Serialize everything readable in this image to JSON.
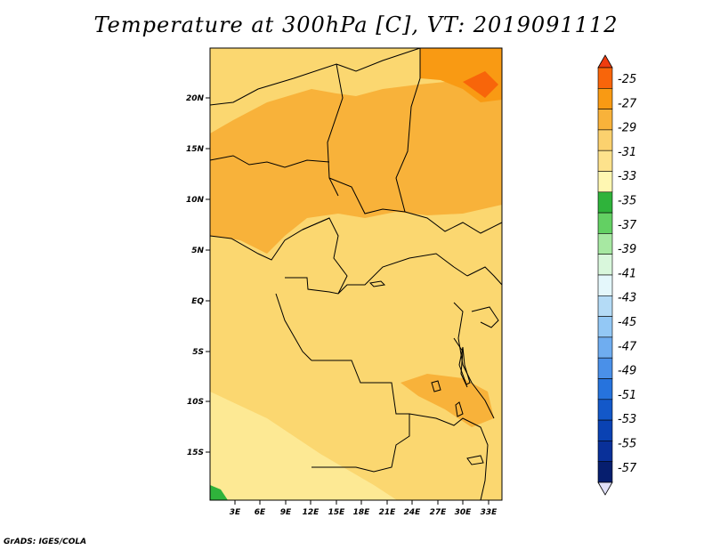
{
  "title": "Temperature at 300hPa [C], VT: 2019091112",
  "footer": "GrADS: IGES/COLA",
  "chart_data": {
    "type": "heatmap",
    "x_ticks": [
      "3E",
      "6E",
      "9E",
      "12E",
      "15E",
      "18E",
      "21E",
      "24E",
      "27E",
      "30E",
      "33E"
    ],
    "y_ticks": [
      "20N",
      "15N",
      "10N",
      "5N",
      "EQ",
      "5S",
      "10S",
      "15S"
    ],
    "x_range": [
      0,
      34.5
    ],
    "y_range": [
      -19.5,
      24.5
    ],
    "colorbar": {
      "labels": [
        "-25",
        "-27",
        "-29",
        "-31",
        "-33",
        "-35",
        "-37",
        "-39",
        "-41",
        "-43",
        "-45",
        "-47",
        "-49",
        "-51",
        "-53",
        "-55",
        "-57"
      ],
      "colors": [
        "#f03c0f",
        "#f8650a",
        "#f99a13",
        "#f8b23a",
        "#fbd16e",
        "#fde28c",
        "#fff7b2",
        "#2fb33b",
        "#63d063",
        "#a7e8a2",
        "#d9f7dc",
        "#e4f7fb",
        "#b4dbf6",
        "#93c8f5",
        "#6fadf0",
        "#4a90e8",
        "#2673dd",
        "#1358c9",
        "#0a42b3",
        "#093099",
        "#061e6e",
        "#e0e0f8"
      ]
    },
    "colors": {
      "background_field": "#fbd770",
      "warm_band": "#f8b23a",
      "warmest": "#f99a13",
      "cool_band": "#fde994",
      "cold_patch": "#2fb33b",
      "boundaries": "#000000"
    }
  }
}
